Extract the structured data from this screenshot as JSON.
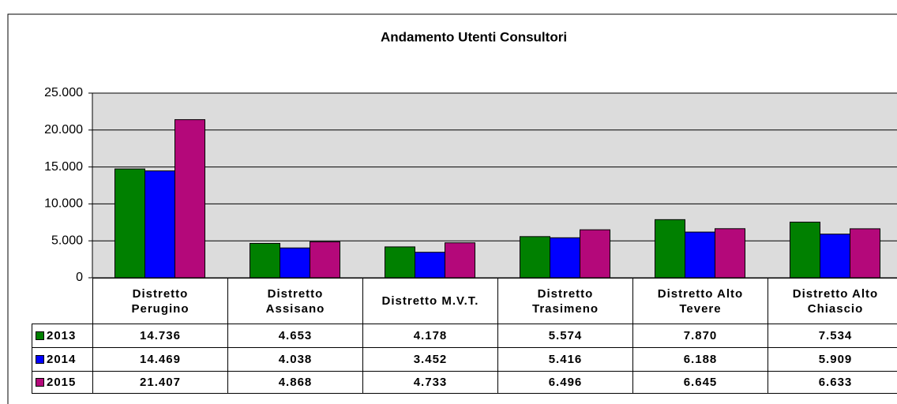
{
  "chart_data": {
    "type": "bar",
    "title": "Andamento Utenti Consultori",
    "categories": [
      "Distretto Perugino",
      "Distretto Assisano",
      "Distretto M.V.T.",
      "Distretto Trasimeno",
      "Distretto Alto Tevere",
      "Distretto Alto Chiascio"
    ],
    "series": [
      {
        "name": "2013",
        "color": "#008000",
        "values": [
          14736,
          4653,
          4178,
          5574,
          7870,
          7534
        ],
        "value_labels": [
          "14.736",
          "4.653",
          "4.178",
          "5.574",
          "7.870",
          "7.534"
        ]
      },
      {
        "name": "2014",
        "color": "#0000ff",
        "values": [
          14469,
          4038,
          3452,
          5416,
          6188,
          5909
        ],
        "value_labels": [
          "14.469",
          "4.038",
          "3.452",
          "5.416",
          "6.188",
          "5.909"
        ]
      },
      {
        "name": "2015",
        "color": "#b4087a",
        "values": [
          21407,
          4868,
          4733,
          6496,
          6645,
          6633
        ],
        "value_labels": [
          "21.407",
          "4.868",
          "4.733",
          "6.496",
          "6.645",
          "6.633"
        ]
      }
    ],
    "ylim": [
      0,
      25000
    ],
    "yticks": [
      0,
      {
        "value": 5000,
        "label": "5.000"
      },
      {
        "value": 10000,
        "label": "10.000"
      },
      {
        "value": 15000,
        "label": "15.000"
      },
      {
        "value": 20000,
        "label": "20.000"
      },
      {
        "value": 25000,
        "label": "25.000"
      }
    ],
    "grid": true
  }
}
